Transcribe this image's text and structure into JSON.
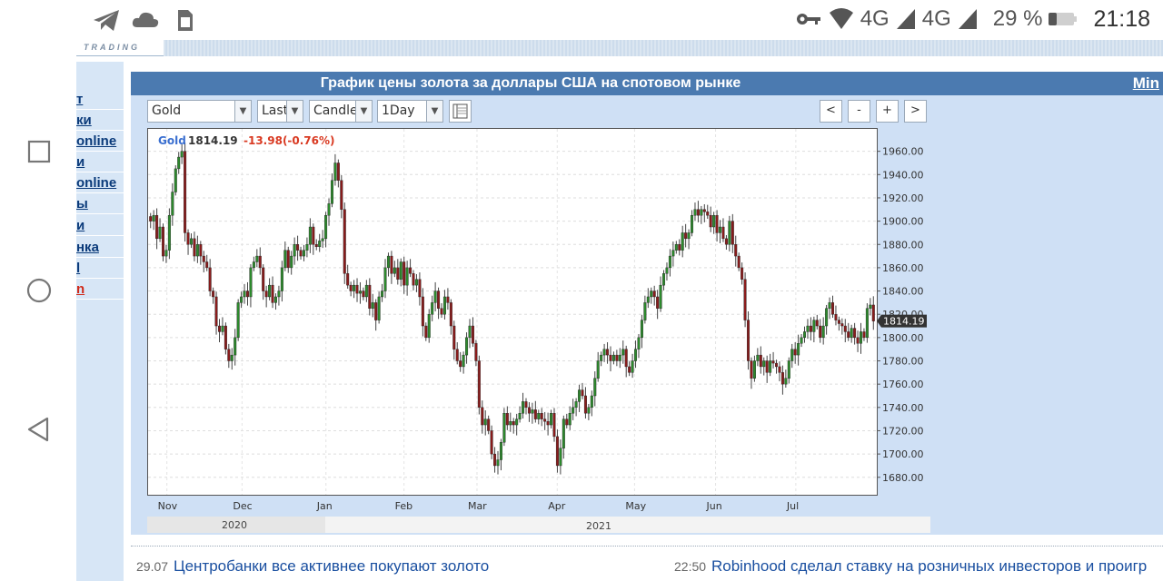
{
  "status_bar": {
    "network1": "4G",
    "network2": "4G",
    "battery": "29 %",
    "time": "21:18",
    "icons": [
      "telegram-icon",
      "cloud-icon",
      "sim-icon",
      "key-icon",
      "wifi-icon",
      "signal-icon",
      "battery-icon"
    ]
  },
  "nav_bar": {
    "buttons": [
      "square-recents-icon",
      "circle-home-icon",
      "triangle-back-icon"
    ]
  },
  "banner": {
    "text": "TRADING"
  },
  "left_menu": {
    "items": [
      "т",
      "ки",
      "online",
      "и",
      "online",
      "ы",
      "и",
      "нка",
      "l",
      "n"
    ]
  },
  "chart_panel": {
    "title": "График цены золота за доллары США на спотовом рынке",
    "min_link": "Min",
    "controls": {
      "instrument": "Gold",
      "price_type": "Last",
      "chart_type": "Candle",
      "interval": "1Day"
    },
    "nav_buttons": [
      "<",
      "-",
      "+",
      ">"
    ],
    "legend": {
      "symbol": "Gold",
      "price": "1814.19",
      "change": "-13.98(-0.76%)"
    },
    "last_price_tag": "1814.19"
  },
  "colors": {
    "up_candle": "#2d8a2d",
    "down_candle": "#8a1c1c",
    "header_bg": "#4b7ab0",
    "panel_bg": "#cfe0f5",
    "change_red": "#d93a22",
    "symbol_blue": "#3a6fd0"
  },
  "chart_data": {
    "type": "candlestick",
    "title": "График цены золота за доллары США на спотовом рынке",
    "xlabel": "",
    "ylabel": "",
    "ylim": [
      1665,
      1980
    ],
    "y_ticks": [
      "1960.00",
      "1940.00",
      "1920.00",
      "1900.00",
      "1880.00",
      "1860.00",
      "1840.00",
      "1820.00",
      "1800.00",
      "1780.00",
      "1760.00",
      "1740.00",
      "1720.00",
      "1700.00",
      "1680.00"
    ],
    "x_ticks": [
      "Nov",
      "Dec",
      "Jan",
      "Feb",
      "Mar",
      "Apr",
      "May",
      "Jun",
      "Jul"
    ],
    "year_labels": [
      "2020",
      "2021"
    ],
    "grid": true,
    "closes": [
      1900,
      1905,
      1885,
      1895,
      1870,
      1875,
      1905,
      1925,
      1945,
      1955,
      1960,
      1890,
      1880,
      1885,
      1870,
      1880,
      1870,
      1865,
      1860,
      1840,
      1835,
      1810,
      1805,
      1810,
      1790,
      1780,
      1785,
      1800,
      1830,
      1835,
      1840,
      1835,
      1860,
      1865,
      1870,
      1860,
      1840,
      1835,
      1845,
      1830,
      1835,
      1840,
      1860,
      1875,
      1860,
      1870,
      1880,
      1875,
      1870,
      1875,
      1880,
      1895,
      1880,
      1878,
      1883,
      1885,
      1905,
      1915,
      1935,
      1950,
      1935,
      1910,
      1855,
      1845,
      1840,
      1845,
      1838,
      1840,
      1835,
      1845,
      1825,
      1830,
      1815,
      1835,
      1840,
      1860,
      1870,
      1855,
      1860,
      1850,
      1865,
      1845,
      1860,
      1855,
      1845,
      1850,
      1835,
      1810,
      1800,
      1820,
      1830,
      1840,
      1825,
      1820,
      1835,
      1830,
      1810,
      1790,
      1780,
      1775,
      1785,
      1800,
      1810,
      1795,
      1780,
      1740,
      1725,
      1730,
      1720,
      1700,
      1690,
      1695,
      1710,
      1735,
      1725,
      1728,
      1725,
      1730,
      1735,
      1745,
      1740,
      1735,
      1738,
      1730,
      1735,
      1730,
      1728,
      1725,
      1735,
      1715,
      1690,
      1705,
      1730,
      1725,
      1735,
      1740,
      1745,
      1755,
      1750,
      1735,
      1740,
      1750,
      1765,
      1780,
      1785,
      1790,
      1785,
      1780,
      1785,
      1780,
      1785,
      1790,
      1775,
      1770,
      1780,
      1790,
      1800,
      1815,
      1830,
      1835,
      1840,
      1835,
      1825,
      1845,
      1855,
      1860,
      1870,
      1875,
      1880,
      1875,
      1890,
      1885,
      1890,
      1905,
      1910,
      1905,
      1910,
      1908,
      1905,
      1895,
      1905,
      1890,
      1895,
      1885,
      1880,
      1900,
      1880,
      1870,
      1860,
      1850,
      1815,
      1780,
      1765,
      1780,
      1785,
      1775,
      1780,
      1770,
      1780,
      1778,
      1775,
      1770,
      1760,
      1765,
      1780,
      1790,
      1785,
      1795,
      1800,
      1805,
      1810,
      1805,
      1815,
      1810,
      1800,
      1810,
      1825,
      1830,
      1820,
      1815,
      1812,
      1810,
      1805,
      1800,
      1808,
      1800,
      1795,
      1805,
      1800,
      1825,
      1828,
      1814.19
    ]
  },
  "news": [
    {
      "time": "29.07",
      "title": "Центробанки все активнее покупают золото"
    },
    {
      "time": "22:50",
      "title": "Robinhood сделал ставку на розничных инвесторов и проигр"
    }
  ]
}
